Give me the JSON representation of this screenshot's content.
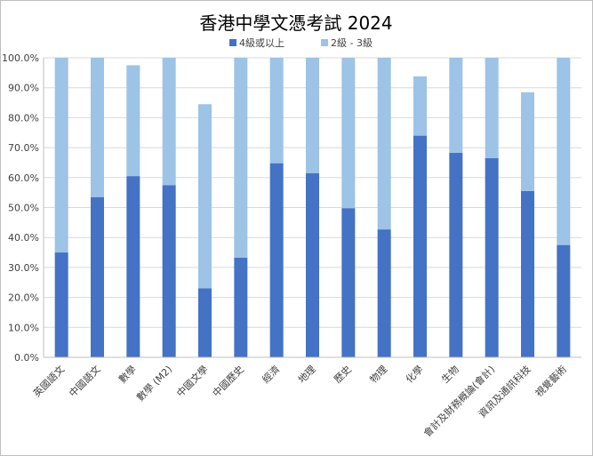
{
  "chart_data": {
    "type": "bar",
    "stacked": true,
    "title": "香港中學文憑考試 2024",
    "xlabel": "",
    "ylabel": "",
    "ylim": [
      0,
      100
    ],
    "y_ticks": [
      "0.0%",
      "10.0%",
      "20.0%",
      "30.0%",
      "40.0%",
      "50.0%",
      "60.0%",
      "70.0%",
      "80.0%",
      "90.0%",
      "100.0%"
    ],
    "grid": true,
    "legend_position": "top",
    "categories": [
      "英國語文",
      "中國語文",
      "數學",
      "數學 (M2)",
      "中國文學",
      "中國歷史",
      "經濟",
      "地理",
      "歷史",
      "物理",
      "化學",
      "生物",
      "會計及財務概論(會計)",
      "資訊及通訊科技",
      "視覺藝術"
    ],
    "series": [
      {
        "name": "4級或以上",
        "color": "#4472c4",
        "values": [
          35.0,
          53.5,
          60.5,
          57.5,
          23.0,
          33.3,
          64.8,
          61.5,
          49.8,
          42.7,
          74.0,
          68.3,
          66.5,
          55.5,
          37.5
        ]
      },
      {
        "name": "2級 - 3級",
        "color": "#9dc3e6",
        "values": [
          65.0,
          46.5,
          37.0,
          42.5,
          61.5,
          66.7,
          35.2,
          38.5,
          50.2,
          57.3,
          19.8,
          31.7,
          33.5,
          33.0,
          62.5
        ]
      }
    ]
  }
}
